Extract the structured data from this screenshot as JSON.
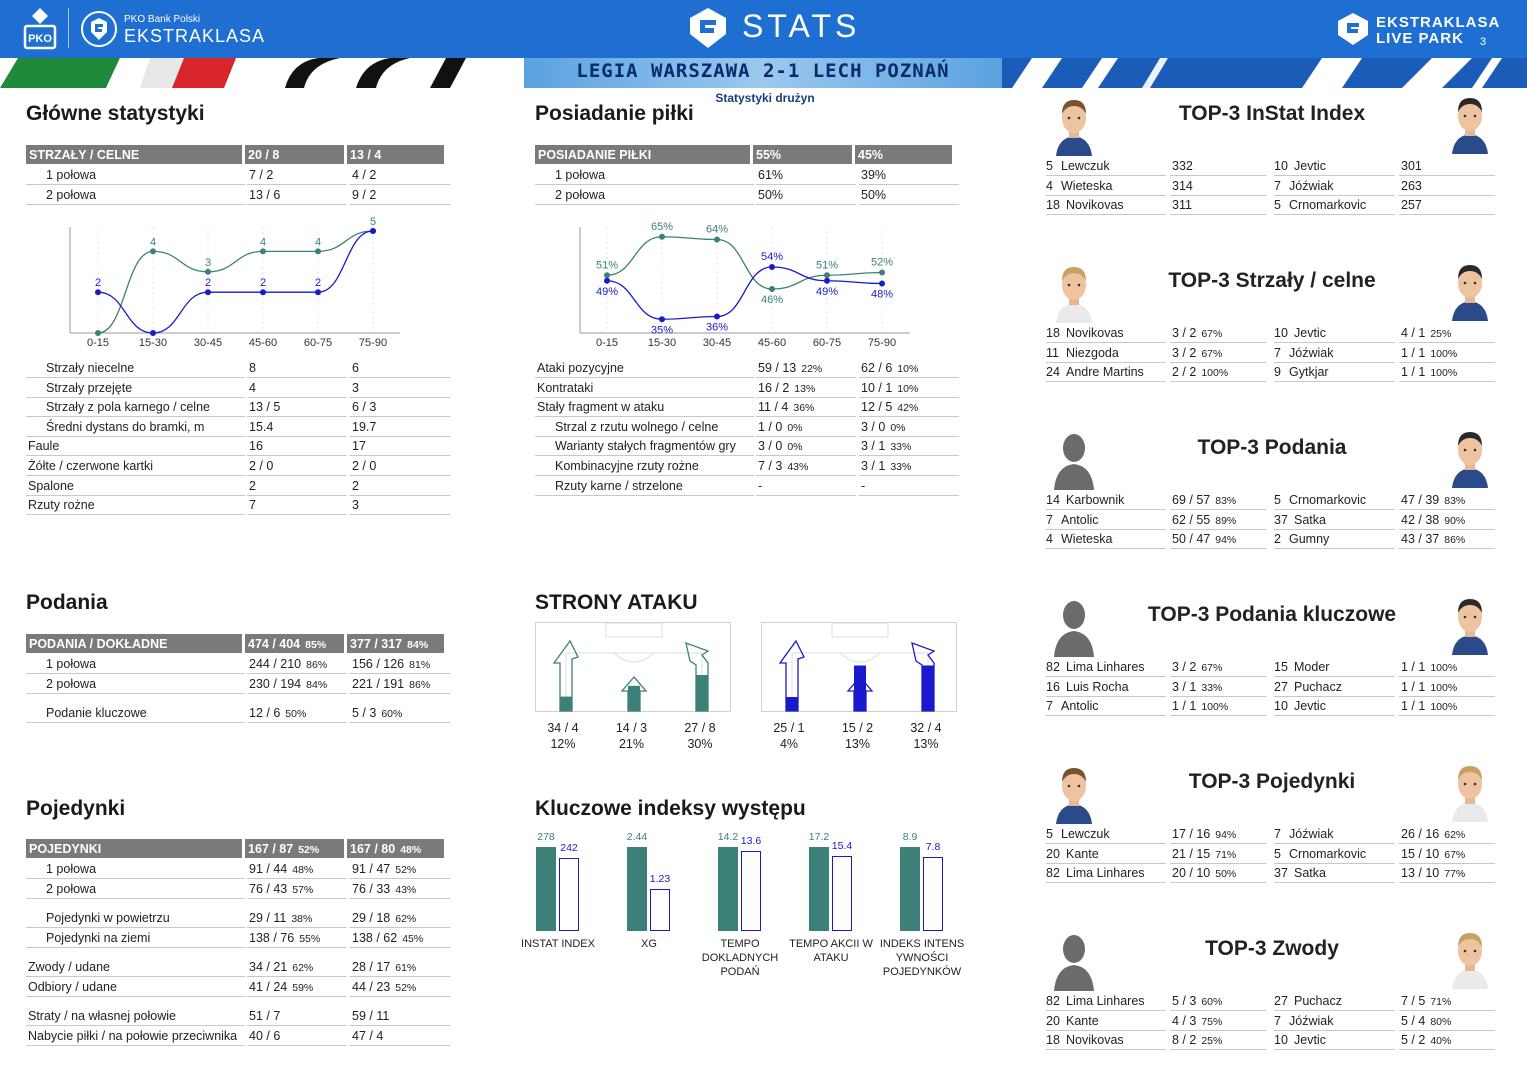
{
  "header": {
    "pko_text": "PKO Bank Polski",
    "league_text": "EKSTRAKLASA",
    "title": "STATS",
    "live_line1": "EKSTRAKLASA",
    "live_line2": "LIVE PARK",
    "page_number": "3",
    "match": "LEGIA WARSZAWA 2-1  LECH POZNAŃ",
    "subtitle": "Statystyki drużyn"
  },
  "colors": {
    "team1": "#3d8077",
    "team2": "#1a1acc",
    "header_blue": "#1e6fd1",
    "gray": "#7a7a7a"
  },
  "main_stats": {
    "title": "Główne statystyki",
    "header": [
      "STRZAŁY / CELNE",
      "20 / 8",
      "13 / 4"
    ],
    "halves": [
      [
        "1 połowa",
        "7 / 2",
        "4 / 2"
      ],
      [
        "2 połowa",
        "13 / 6",
        "9 / 2"
      ]
    ],
    "rows": [
      [
        "Strzały niecelne",
        "8",
        "6"
      ],
      [
        "Strzały przejęte",
        "4",
        "3"
      ],
      [
        "Strzały z pola karnego / celne",
        "13 / 5",
        "6 / 3"
      ],
      [
        "Średni dystans do bramki, m",
        "15.4",
        "19.7"
      ],
      [
        "Faule",
        "16",
        "17"
      ],
      [
        "Żółte / czerwone kartki",
        "2 / 0",
        "2 / 0"
      ],
      [
        "Spalone",
        "2",
        "2"
      ],
      [
        "Rzuty rożne",
        "7",
        "3"
      ]
    ]
  },
  "possession": {
    "title": "Posiadanie piłki",
    "header": [
      "POSIADANIE PIŁKI",
      "55%",
      "45%"
    ],
    "halves": [
      [
        "1 połowa",
        "61%",
        "39%"
      ],
      [
        "2 połowa",
        "50%",
        "50%"
      ]
    ],
    "rows": [
      [
        "Ataki pozycyjne",
        "59 / 13",
        "22%",
        "62 / 6",
        "10%"
      ],
      [
        "Kontrataki",
        "16 / 2",
        "13%",
        "10 / 1",
        "10%"
      ],
      [
        "Stały fragment w ataku",
        "11 / 4",
        "36%",
        "12 / 5",
        "42%"
      ],
      [
        "Strzal z rzutu wolnego / celne",
        "1 / 0",
        "0%",
        "3 / 0",
        "0%"
      ],
      [
        "Warianty stałych fragmentów gry",
        "3 / 0",
        "0%",
        "3 / 1",
        "33%"
      ],
      [
        "Kombinacyjne rzuty rożne",
        "7 / 3",
        "43%",
        "3 / 1",
        "33%"
      ],
      [
        "Rzuty karne /  strzelone",
        "-",
        "",
        "-",
        ""
      ]
    ]
  },
  "passes": {
    "title": "Podania",
    "header": [
      "PODANIA / DOKŁADNE",
      "474 / 404",
      "85%",
      "377 / 317",
      "84%"
    ],
    "halves": [
      [
        "1 połowa",
        "244 / 210",
        "86%",
        "156 / 126",
        "81%"
      ],
      [
        "2 połowa",
        "230 / 194",
        "84%",
        "221 / 191",
        "86%"
      ]
    ],
    "key": [
      "Podanie kluczowe",
      "12 / 6",
      "50%",
      "5 / 3",
      "60%"
    ]
  },
  "duels": {
    "title": "Pojedynki",
    "header": [
      "POJEDYNKI",
      "167 / 87",
      "52%",
      "167 / 80",
      "48%"
    ],
    "halves": [
      [
        "1 połowa",
        "91 / 44",
        "48%",
        "91 / 47",
        "52%"
      ],
      [
        "2 połowa",
        "76 / 43",
        "57%",
        "76 / 33",
        "43%"
      ]
    ],
    "group2": [
      [
        "Pojedynki w powietrzu",
        "29 / 11",
        "38%",
        "29 / 18",
        "62%"
      ],
      [
        "Pojedynki na ziemi",
        "138 / 76",
        "55%",
        "138 / 62",
        "45%"
      ]
    ],
    "group3": [
      [
        "Zwody / udane",
        "34 / 21",
        "62%",
        "28 / 17",
        "61%"
      ],
      [
        "Odbiory / udane",
        "41 / 24",
        "59%",
        "44 / 23",
        "52%"
      ]
    ],
    "group4": [
      [
        "Straty / na własnej połowie",
        "51 / 7",
        "",
        "59 / 11",
        ""
      ],
      [
        "Nabycie piłki / na połowie przeciwnika",
        "40 / 6",
        "",
        "47 / 4",
        ""
      ]
    ]
  },
  "attack_sides": {
    "title": "STRONY ATAKU",
    "team1": [
      [
        "34 / 4",
        "12%"
      ],
      [
        "14 / 3",
        "21%"
      ],
      [
        "27 / 8",
        "30%"
      ]
    ],
    "team2": [
      [
        "25 / 1",
        "4%"
      ],
      [
        "15 / 2",
        "13%"
      ],
      [
        "32 / 4",
        "13%"
      ]
    ]
  },
  "key_indexes": {
    "title": "Kluczowe indeksy występu"
  },
  "chart_data": [
    {
      "type": "line",
      "x": [
        "0-15",
        "15-30",
        "30-45",
        "45-60",
        "60-75",
        "75-90"
      ],
      "series": [
        {
          "values": [
            0,
            4,
            3,
            4,
            4,
            5
          ],
          "color": "#3d8077"
        },
        {
          "values": [
            2,
            0,
            2,
            2,
            2,
            5
          ],
          "color": "#1a1acc"
        }
      ],
      "data_labels_team1": [
        "",
        "4",
        "3",
        "4",
        "4",
        "5"
      ],
      "data_labels_team2": [
        "2",
        "",
        "2",
        "2",
        "2",
        ""
      ],
      "ylim": [
        0,
        5
      ]
    },
    {
      "type": "line",
      "x": [
        "0-15",
        "15-30",
        "30-45",
        "45-60",
        "60-75",
        "75-90"
      ],
      "series": [
        {
          "values": [
            51,
            65,
            64,
            46,
            51,
            52
          ],
          "color": "#3d8077"
        },
        {
          "values": [
            49,
            35,
            36,
            54,
            49,
            48
          ],
          "color": "#1a1acc"
        }
      ],
      "labels_team1": [
        "51%",
        "65%",
        "64%",
        "46%",
        "51%",
        "52%"
      ],
      "labels_team2": [
        "49%",
        "35%",
        "36%",
        "54%",
        "49%",
        "48%"
      ],
      "ylim": [
        30,
        70
      ]
    },
    {
      "type": "bar",
      "categories": [
        "INSTAT INDEX",
        "XG",
        "TEMPO DOKLADNYCH PODAŃ",
        "TEMPO AKCII W ATAKU",
        "INDEKS INTENS YWNOŚCI POJEDYNKÓW"
      ],
      "category_lines": [
        [
          "INSTAT INDEX"
        ],
        [
          "XG"
        ],
        [
          "TEMPO",
          "DOKLADNYCH",
          "PODAŃ"
        ],
        [
          "TEMPO AKCII W",
          "ATAKU"
        ],
        [
          "INDEKS INTENS",
          "YWNOŚCI",
          "POJEDYNKÓW"
        ]
      ],
      "series": [
        {
          "values": [
            278,
            2.44,
            14.2,
            17.2,
            8.9
          ],
          "labels": [
            "278",
            "2.44",
            "14.2",
            "17.2",
            "8.9"
          ],
          "color": "#3d8077"
        },
        {
          "values": [
            242,
            1.23,
            13.6,
            15.4,
            7.8
          ],
          "labels": [
            "242",
            "1.23",
            "13.6",
            "15.4",
            "7.8"
          ],
          "color": "#1a1acc"
        }
      ]
    }
  ],
  "top3": [
    {
      "title": "TOP-3 InStat Index",
      "left": [
        [
          "5",
          "Lewczuk",
          "332",
          ""
        ],
        [
          "4",
          "Wieteska",
          "314",
          ""
        ],
        [
          "18",
          "Novikovas",
          "311",
          ""
        ]
      ],
      "right": [
        [
          "10",
          "Jevtic",
          "301",
          ""
        ],
        [
          "7",
          "Jóźwiak",
          "263",
          ""
        ],
        [
          "5",
          "Crnomarkovic",
          "257",
          ""
        ]
      ]
    },
    {
      "title": "TOP-3 Strzały / celne",
      "left": [
        [
          "18",
          "Novikovas",
          "3 / 2",
          "67%"
        ],
        [
          "11",
          "Niezgoda",
          "3 / 2",
          "67%"
        ],
        [
          "24",
          "Andre Martins",
          "2 / 2",
          "100%"
        ]
      ],
      "right": [
        [
          "10",
          "Jevtic",
          "4 / 1",
          "25%"
        ],
        [
          "7",
          "Jóźwiak",
          "1 / 1",
          "100%"
        ],
        [
          "9",
          "Gytkjar",
          "1 / 1",
          "100%"
        ]
      ]
    },
    {
      "title": "TOP-3 Podania",
      "left": [
        [
          "14",
          "Karbownik",
          "69 / 57",
          "83%"
        ],
        [
          "7",
          "Antolic",
          "62 / 55",
          "89%"
        ],
        [
          "4",
          "Wieteska",
          "50 / 47",
          "94%"
        ]
      ],
      "right": [
        [
          "5",
          "Crnomarkovic",
          "47 / 39",
          "83%"
        ],
        [
          "37",
          "Satka",
          "42 / 38",
          "90%"
        ],
        [
          "2",
          "Gumny",
          "43 / 37",
          "86%"
        ]
      ]
    },
    {
      "title": "TOP-3 Podania kluczowe",
      "left": [
        [
          "82",
          "Lima Linhares",
          "3 / 2",
          "67%"
        ],
        [
          "16",
          "Luis Rocha",
          "3 / 1",
          "33%"
        ],
        [
          "7",
          "Antolic",
          "1 / 1",
          "100%"
        ]
      ],
      "right": [
        [
          "15",
          "Moder",
          "1 / 1",
          "100%"
        ],
        [
          "27",
          "Puchacz",
          "1 / 1",
          "100%"
        ],
        [
          "10",
          "Jevtic",
          "1 / 1",
          "100%"
        ]
      ]
    },
    {
      "title": "TOP-3 Pojedynki",
      "left": [
        [
          "5",
          "Lewczuk",
          "17 / 16",
          "94%"
        ],
        [
          "20",
          "Kante",
          "21 / 15",
          "71%"
        ],
        [
          "82",
          "Lima Linhares",
          "20 / 10",
          "50%"
        ]
      ],
      "right": [
        [
          "7",
          "Jóźwiak",
          "26 / 16",
          "62%"
        ],
        [
          "5",
          "Crnomarkovic",
          "15 / 10",
          "67%"
        ],
        [
          "37",
          "Satka",
          "13 / 10",
          "77%"
        ]
      ]
    },
    {
      "title": "TOP-3 Zwody",
      "left": [
        [
          "82",
          "Lima Linhares",
          "5 / 3",
          "60%"
        ],
        [
          "20",
          "Kante",
          "4 / 3",
          "75%"
        ],
        [
          "18",
          "Novikovas",
          "8 / 2",
          "25%"
        ]
      ],
      "right": [
        [
          "27",
          "Puchacz",
          "7 / 5",
          "71%"
        ],
        [
          "7",
          "Jóźwiak",
          "5 / 4",
          "80%"
        ],
        [
          "10",
          "Jevtic",
          "5 / 2",
          "40%"
        ]
      ]
    }
  ]
}
